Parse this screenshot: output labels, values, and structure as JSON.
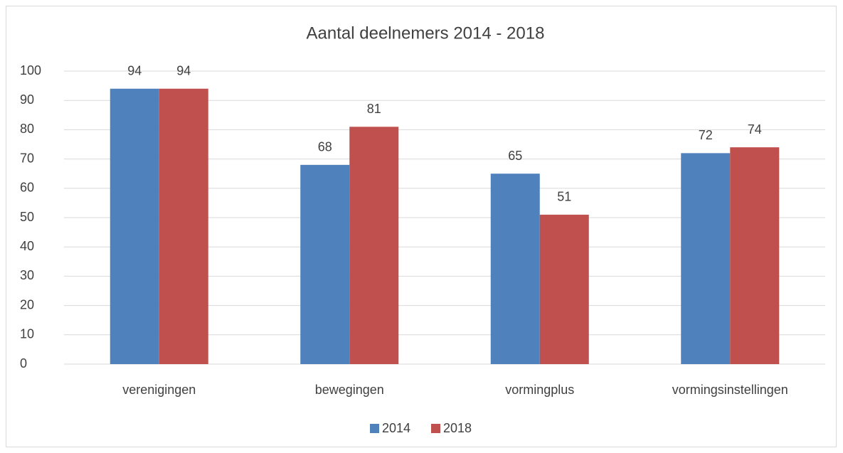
{
  "chart_data": {
    "type": "bar",
    "title": "Aantal deelnemers 2014 - 2018",
    "categories": [
      "verenigingen",
      "bewegingen",
      "vormingplus",
      "vormingsinstellingen"
    ],
    "series": [
      {
        "name": "2014",
        "color": "#4f81bd",
        "values": [
          94,
          68,
          65,
          72
        ]
      },
      {
        "name": "2018",
        "color": "#c0504d",
        "values": [
          94,
          81,
          51,
          74
        ]
      }
    ],
    "ylim": [
      0,
      100
    ],
    "yticks": [
      0,
      10,
      20,
      30,
      40,
      50,
      60,
      70,
      80,
      90,
      100
    ],
    "grid": true,
    "legend": "bottom"
  }
}
